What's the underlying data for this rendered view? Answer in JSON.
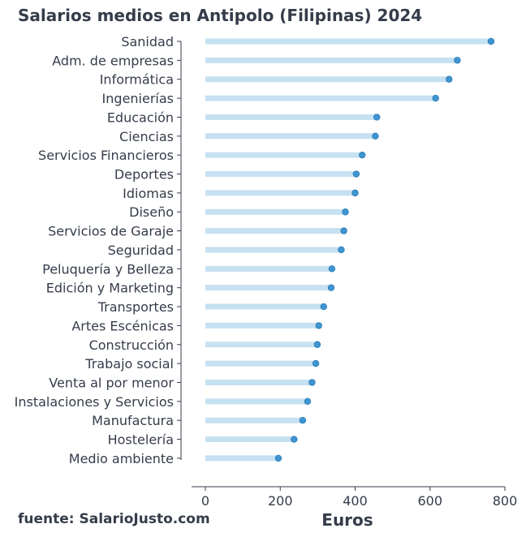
{
  "chart_data": {
    "type": "lollipop",
    "title": "Salarios medios en Antipolo (Filipinas) 2024",
    "xlabel": "Euros",
    "ylabel": "",
    "source": "fuente: SalarioJusto.com",
    "xlim": [
      0,
      800
    ],
    "xticks": [
      0,
      200,
      400,
      600,
      800
    ],
    "grid": false,
    "colors": {
      "stem": "#c6e1f1",
      "dot": "#3f95cf",
      "dot_edge": "#2b7bb8",
      "text": "#353c4a",
      "axis": "#353c4a"
    },
    "categories": [
      "Sanidad",
      "Adm. de empresas",
      "Informática",
      "Ingenierías",
      "Educación",
      "Ciencias",
      "Servicios Financieros",
      "Deportes",
      "Idiomas",
      "Diseño",
      "Servicios de Garaje",
      "Seguridad",
      "Peluquería y Belleza",
      "Edición y Marketing",
      "Transportes",
      "Artes Escénicas",
      "Construcción",
      "Trabajo social",
      "Venta al por menor",
      "Instalaciones y Servicios",
      "Manufactura",
      "Hostelería",
      "Medio ambiente"
    ],
    "values": [
      763,
      673,
      651,
      615,
      458,
      454,
      419,
      403,
      400,
      374,
      370,
      363,
      338,
      336,
      316,
      303,
      299,
      295,
      285,
      273,
      260,
      237,
      195
    ]
  }
}
